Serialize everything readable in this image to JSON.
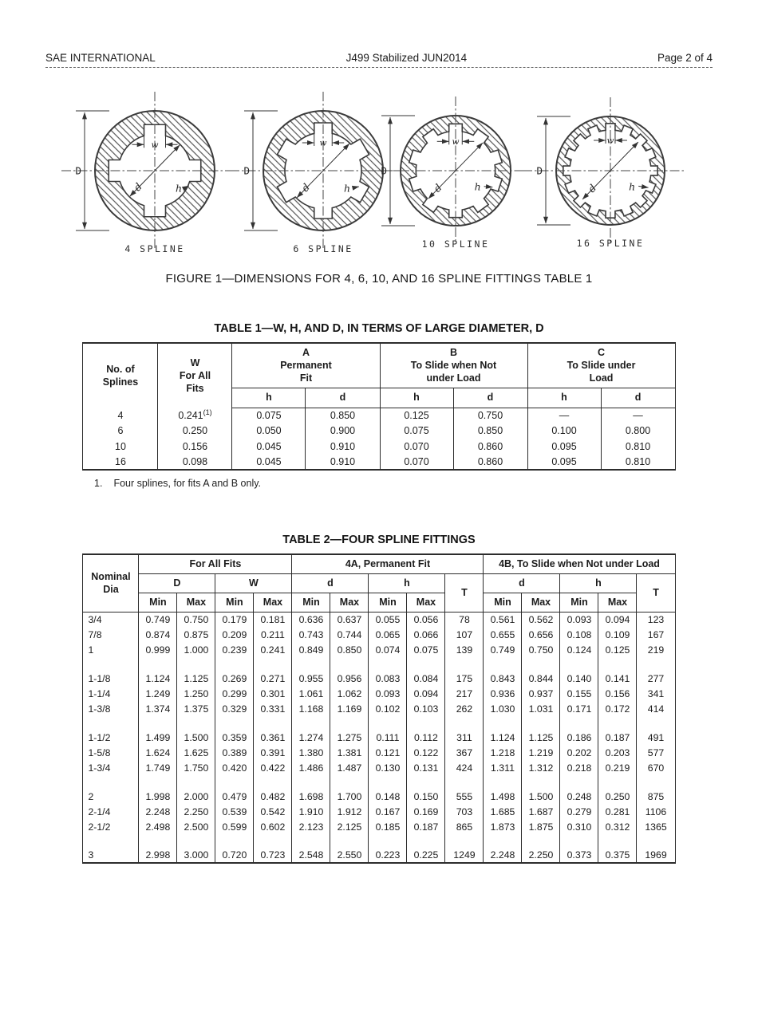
{
  "header": {
    "left": "SAE INTERNATIONAL",
    "center": "J499 Stabilized JUN2014",
    "right": "Page 2 of 4"
  },
  "figure": {
    "caption": "FIGURE 1—DIMENSIONS FOR 4, 6, 10, AND 16 SPLINE FITTINGS TABLE 1",
    "dim_labels": {
      "outer": "D",
      "inner": "d",
      "height": "h",
      "width": "w"
    },
    "diagrams": [
      {
        "label": "4 SPLINE",
        "splines": 4
      },
      {
        "label": "6 SPLINE",
        "splines": 6
      },
      {
        "label": "10 SPLINE",
        "splines": 10
      },
      {
        "label": "16 SPLINE",
        "splines": 16
      }
    ]
  },
  "table1": {
    "title": "TABLE 1—W, H, AND D, IN TERMS OF LARGE DIAMETER, D",
    "col1_header": "No. of\nSplines",
    "col2_header": "W\nFor All\nFits",
    "groups": [
      "A\nPermanent\nFit",
      "B\nTo Slide when Not\nunder Load",
      "C\nTo Slide under\nLoad"
    ],
    "sub": [
      "h",
      "d"
    ],
    "rows": [
      {
        "splines": "4",
        "w": "0.241",
        "w_sup": "(1)",
        "cells": [
          "0.075",
          "0.850",
          "0.125",
          "0.750",
          "—",
          "—"
        ]
      },
      {
        "splines": "6",
        "w": "0.250",
        "cells": [
          "0.050",
          "0.900",
          "0.075",
          "0.850",
          "0.100",
          "0.800"
        ]
      },
      {
        "splines": "10",
        "w": "0.156",
        "cells": [
          "0.045",
          "0.910",
          "0.070",
          "0.860",
          "0.095",
          "0.810"
        ]
      },
      {
        "splines": "16",
        "w": "0.098",
        "cells": [
          "0.045",
          "0.910",
          "0.070",
          "0.860",
          "0.095",
          "0.810"
        ]
      }
    ],
    "footnote_num": "1.",
    "footnote_text": "Four splines, for fits A and B only."
  },
  "table2": {
    "title": "TABLE 2—FOUR SPLINE FITTINGS",
    "corner": "Nominal\nDia",
    "top_groups": [
      "For All Fits",
      "4A, Permanent Fit",
      "4B, To Slide when Not under Load"
    ],
    "mid": [
      "D",
      "W",
      "d",
      "h",
      "T",
      "d",
      "h",
      "T"
    ],
    "minmax": [
      "Min",
      "Max"
    ],
    "row_groups": [
      [
        [
          "3/4",
          "0.749",
          "0.750",
          "0.179",
          "0.181",
          "0.636",
          "0.637",
          "0.055",
          "0.056",
          "78",
          "0.561",
          "0.562",
          "0.093",
          "0.094",
          "123"
        ],
        [
          "7/8",
          "0.874",
          "0.875",
          "0.209",
          "0.211",
          "0.743",
          "0.744",
          "0.065",
          "0.066",
          "107",
          "0.655",
          "0.656",
          "0.108",
          "0.109",
          "167"
        ],
        [
          "1",
          "0.999",
          "1.000",
          "0.239",
          "0.241",
          "0.849",
          "0.850",
          "0.074",
          "0.075",
          "139",
          "0.749",
          "0.750",
          "0.124",
          "0.125",
          "219"
        ]
      ],
      [
        [
          "1-1/8",
          "1.124",
          "1.125",
          "0.269",
          "0.271",
          "0.955",
          "0.956",
          "0.083",
          "0.084",
          "175",
          "0.843",
          "0.844",
          "0.140",
          "0.141",
          "277"
        ],
        [
          "1-1/4",
          "1.249",
          "1.250",
          "0.299",
          "0.301",
          "1.061",
          "1.062",
          "0.093",
          "0.094",
          "217",
          "0.936",
          "0.937",
          "0.155",
          "0.156",
          "341"
        ],
        [
          "1-3/8",
          "1.374",
          "1.375",
          "0.329",
          "0.331",
          "1.168",
          "1.169",
          "0.102",
          "0.103",
          "262",
          "1.030",
          "1.031",
          "0.171",
          "0.172",
          "414"
        ]
      ],
      [
        [
          "1-1/2",
          "1.499",
          "1.500",
          "0.359",
          "0.361",
          "1.274",
          "1.275",
          "0.111",
          "0.112",
          "311",
          "1.124",
          "1.125",
          "0.186",
          "0.187",
          "491"
        ],
        [
          "1-5/8",
          "1.624",
          "1.625",
          "0.389",
          "0.391",
          "1.380",
          "1.381",
          "0.121",
          "0.122",
          "367",
          "1.218",
          "1.219",
          "0.202",
          "0.203",
          "577"
        ],
        [
          "1-3/4",
          "1.749",
          "1.750",
          "0.420",
          "0.422",
          "1.486",
          "1.487",
          "0.130",
          "0.131",
          "424",
          "1.311",
          "1.312",
          "0.218",
          "0.219",
          "670"
        ]
      ],
      [
        [
          "2",
          "1.998",
          "2.000",
          "0.479",
          "0.482",
          "1.698",
          "1.700",
          "0.148",
          "0.150",
          "555",
          "1.498",
          "1.500",
          "0.248",
          "0.250",
          "875"
        ],
        [
          "2-1/4",
          "2.248",
          "2.250",
          "0.539",
          "0.542",
          "1.910",
          "1.912",
          "0.167",
          "0.169",
          "703",
          "1.685",
          "1.687",
          "0.279",
          "0.281",
          "1106"
        ],
        [
          "2-1/2",
          "2.498",
          "2.500",
          "0.599",
          "0.602",
          "2.123",
          "2.125",
          "0.185",
          "0.187",
          "865",
          "1.873",
          "1.875",
          "0.310",
          "0.312",
          "1365"
        ]
      ],
      [
        [
          "3",
          "2.998",
          "3.000",
          "0.720",
          "0.723",
          "2.548",
          "2.550",
          "0.223",
          "0.225",
          "1249",
          "2.248",
          "2.250",
          "0.373",
          "0.375",
          "1969"
        ]
      ]
    ]
  }
}
